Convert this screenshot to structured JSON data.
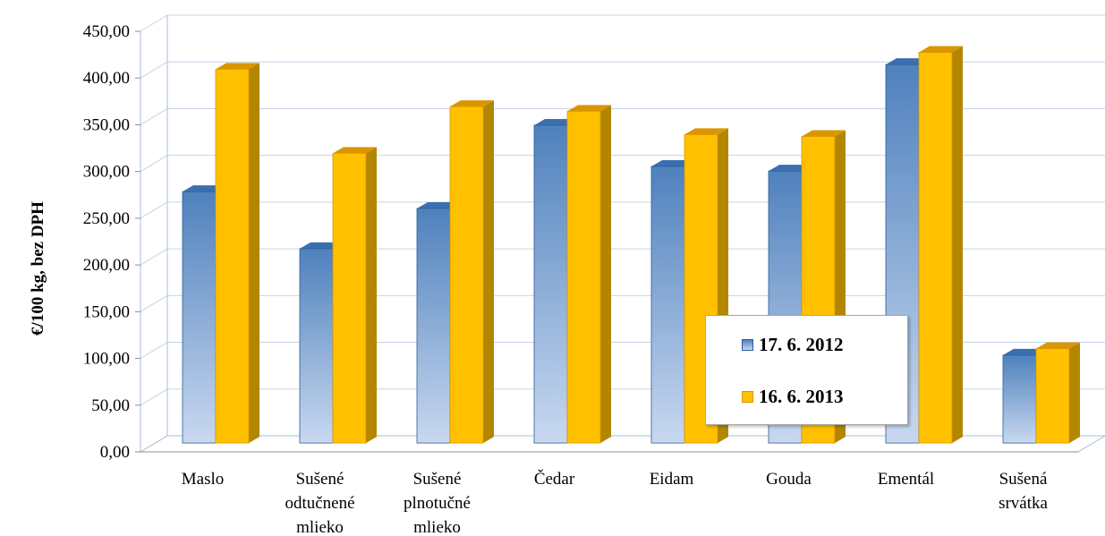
{
  "chart_data": {
    "type": "bar",
    "ylabel": "€/100 kg, bez DPH",
    "ylim": [
      0,
      450
    ],
    "yticks": [
      "0,00",
      "50,00",
      "100,00",
      "150,00",
      "200,00",
      "250,00",
      "300,00",
      "350,00",
      "400,00",
      "450,00"
    ],
    "categories": [
      [
        "Maslo"
      ],
      [
        "Sušené",
        "odtučnené",
        "mlieko"
      ],
      [
        "Sušené",
        "plnotučné",
        "mlieko"
      ],
      [
        "Čedar"
      ],
      [
        "Eidam"
      ],
      [
        "Gouda"
      ],
      [
        "Ementál"
      ],
      [
        "Sušená",
        "srvátka"
      ]
    ],
    "series": [
      {
        "name": "17. 6. 2012",
        "values": [
          269,
          208,
          251,
          340,
          296,
          291,
          405,
          94
        ]
      },
      {
        "name": "16. 6. 2013",
        "values": [
          400,
          310,
          360,
          355,
          330,
          328,
          418,
          101
        ]
      }
    ],
    "colors": {
      "s1_top": "#4f81bd",
      "s1_bottom": "#c8d8f0",
      "s1_side": "#2c5d99",
      "s2": "#ffc000",
      "s2_side": "#b38600",
      "s2_top": "#d99600"
    },
    "legend_position": "inside-bottom-right",
    "grid": true
  }
}
